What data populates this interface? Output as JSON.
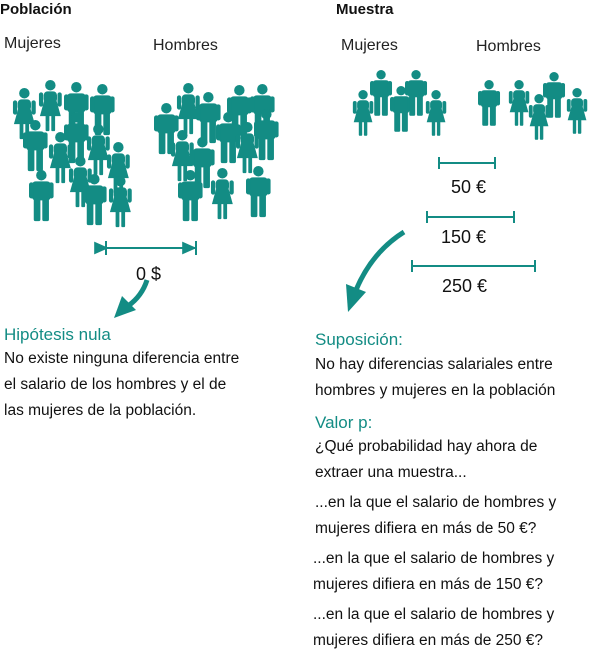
{
  "population": {
    "title": "Población",
    "women_label": "Mujeres",
    "men_label": "Hombres",
    "difference": "0 $"
  },
  "sample": {
    "title": "Muestra",
    "women_label": "Mujeres",
    "men_label": "Hombres",
    "differences": [
      "50 €",
      "150 €",
      "250 €"
    ]
  },
  "null_hypothesis": {
    "heading": "Hipótesis nula",
    "lines": [
      "No existe ninguna diferencia entre",
      "el salario de los hombres y el de",
      "las mujeres de la población."
    ]
  },
  "assumption": {
    "heading": "Suposición:",
    "lines": [
      "No hay diferencias salariales entre",
      "hombres y mujeres en la población"
    ]
  },
  "p_value": {
    "heading": "Valor p:",
    "question_lines": [
      "¿Qué probabilidad hay ahora de",
      "extraer una muestra..."
    ],
    "options": [
      [
        "...en la que el salario de hombres y",
        "mujeres difiera en más de 50 €?"
      ],
      [
        "...en la que el salario de hombres y",
        "mujeres difiera en más de 150 €?"
      ],
      [
        "...en la que el salario de hombres y",
        "mujeres difiera en más de 250 €?"
      ]
    ]
  },
  "colors": {
    "accent": "#138c84",
    "text": "#111111"
  },
  "icons": [
    "person-icon",
    "measure-arrow-icon",
    "curved-arrow-icon"
  ]
}
